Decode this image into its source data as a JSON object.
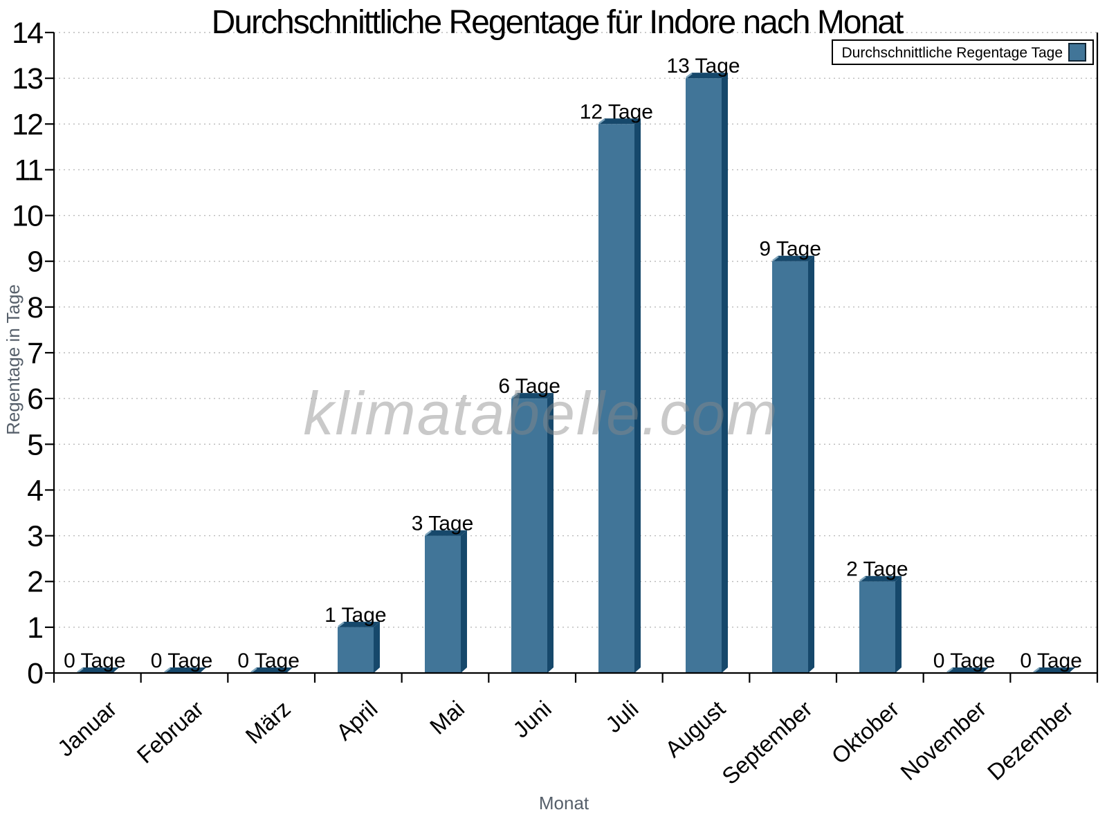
{
  "watermark": {
    "text": "klimatabelle.com"
  },
  "chart_data": {
    "type": "bar",
    "title": "Durchschnittliche Regentage für Indore nach Monat",
    "xlabel": "Monat",
    "ylabel": "Regentage in Tage",
    "legend_label": "Durchschnittliche Regentage Tage",
    "legend_position": "top-right",
    "categories": [
      "Januar",
      "Februar",
      "März",
      "April",
      "Mai",
      "Juni",
      "Juli",
      "August",
      "September",
      "Oktober",
      "November",
      "Dezember"
    ],
    "values": [
      0,
      0,
      0,
      1,
      3,
      6,
      12,
      13,
      9,
      2,
      0,
      0
    ],
    "value_label_suffix": "Tage",
    "value_labels": [
      "0 Tage",
      "0 Tage",
      "0 Tage",
      "1 Tage",
      "3 Tage",
      "6 Tage",
      "12 Tage",
      "13 Tage",
      "9 Tage",
      "2 Tage",
      "0 Tage",
      "0 Tage"
    ],
    "ylim": [
      0,
      14
    ],
    "ytick_step": 1,
    "grid": "horizontal-dotted",
    "bar_style": "3d",
    "colors": {
      "bar_face": "#417598",
      "bar_shadow": "#16486B",
      "bar_bevel": "#7FA5BC",
      "axis_text": "#565F6A",
      "grid_line": "#B9B9B9",
      "watermark_gray": "#C7C7C7"
    }
  }
}
